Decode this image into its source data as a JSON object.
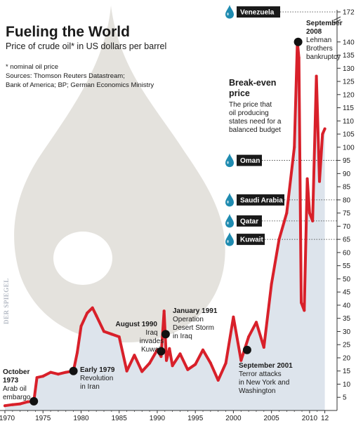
{
  "header": {
    "title": "Fueling the World",
    "subtitle": "Price of crude oil* in US dollars per barrel",
    "notes": [
      "* nominal oil price",
      "Sources: Thomson Reuters Datastream;",
      "Bank of America; BP; German Economics Ministry"
    ]
  },
  "watermark": "DER SPIEGEL",
  "colors": {
    "line": "#d8202a",
    "area": "#dde4ec",
    "drop": "#e4e2dd",
    "marker": "#111111",
    "country_bg": "#1a1a1a",
    "droplet": "#1e8bb0"
  },
  "chart_data": {
    "type": "line",
    "title": "Price of crude oil* in US dollars per barrel",
    "ylabel": "US dollars per barrel",
    "xlim": [
      1970,
      2012.5
    ],
    "x_ticks": [
      "1970",
      "1975",
      "1980",
      "1985",
      "1990",
      "1995",
      "2000",
      "2005",
      "2010",
      "12"
    ],
    "ylim": [
      0,
      145
    ],
    "y_ticks": [
      5,
      10,
      15,
      20,
      25,
      30,
      35,
      40,
      45,
      50,
      55,
      60,
      65,
      70,
      75,
      80,
      85,
      90,
      95,
      100,
      105,
      110,
      115,
      120,
      125,
      130,
      135,
      140
    ],
    "y_break_label": "172",
    "x": [
      1970,
      1971,
      1972,
      1973,
      1973.8,
      1974.2,
      1975,
      1976,
      1977,
      1978,
      1979,
      1979.5,
      1980,
      1980.8,
      1981.5,
      1982,
      1983,
      1984,
      1985,
      1986,
      1987,
      1988,
      1989,
      1990,
      1990.5,
      1990.9,
      1991.2,
      1991.6,
      1992,
      1993,
      1994,
      1995,
      1996,
      1997,
      1998,
      1999,
      2000,
      2001,
      2002,
      2003,
      2004,
      2005,
      2006,
      2007,
      2008,
      2008.4,
      2008.6,
      2008.9,
      2009.3,
      2009.7,
      2010,
      2010.4,
      2010.9,
      2011.3,
      2011.7,
      2012
    ],
    "values": [
      1.8,
      2.2,
      2.5,
      3.3,
      3.5,
      12.5,
      13,
      14.5,
      13.8,
      14.5,
      15,
      22,
      32,
      37,
      39,
      36,
      30,
      29,
      28,
      15,
      21,
      14.8,
      18,
      23,
      20.5,
      37.8,
      19,
      23.5,
      17,
      21.5,
      15.5,
      17.5,
      23,
      18,
      11.5,
      18,
      35.5,
      19,
      28,
      33.5,
      24,
      48,
      65,
      75,
      100,
      140,
      134,
      41,
      38,
      88,
      75,
      72,
      127,
      87,
      105,
      107
    ],
    "annotations": [
      {
        "x": 1973.8,
        "y": 3.5,
        "title": "October 1973",
        "lines": [
          "Arab oil",
          "embargo"
        ]
      },
      {
        "x": 1979,
        "y": 15,
        "title": "Early 1979",
        "lines": [
          "Revolution",
          "in Iran"
        ]
      },
      {
        "x": 1990.5,
        "y": 22.5,
        "title": "August 1990",
        "lines": [
          "Iraq",
          "invades",
          "Kuwait"
        ]
      },
      {
        "x": 1991.1,
        "y": 29,
        "title": "January 1991",
        "lines": [
          "Operation",
          "Desert Storm",
          "in Iraq"
        ]
      },
      {
        "x": 2001.8,
        "y": 23,
        "title": "September 2001",
        "lines": [
          "Terror attacks",
          "in New York and",
          "Washington"
        ]
      },
      {
        "x": 2008.5,
        "y": 140,
        "title": "September 2008",
        "lines": [
          "Lehman",
          "Brothers",
          "bankruptcy"
        ]
      }
    ],
    "break_even": {
      "title": "Break-even price",
      "text": [
        "The price that",
        "oil producing",
        "states need for a",
        "balanced budget"
      ],
      "countries": [
        {
          "name": "Venezuela",
          "value": 172
        },
        {
          "name": "Oman",
          "value": 95
        },
        {
          "name": "Saudi Arabia",
          "value": 80
        },
        {
          "name": "Qatar",
          "value": 72
        },
        {
          "name": "Kuwait",
          "value": 65
        }
      ]
    }
  }
}
